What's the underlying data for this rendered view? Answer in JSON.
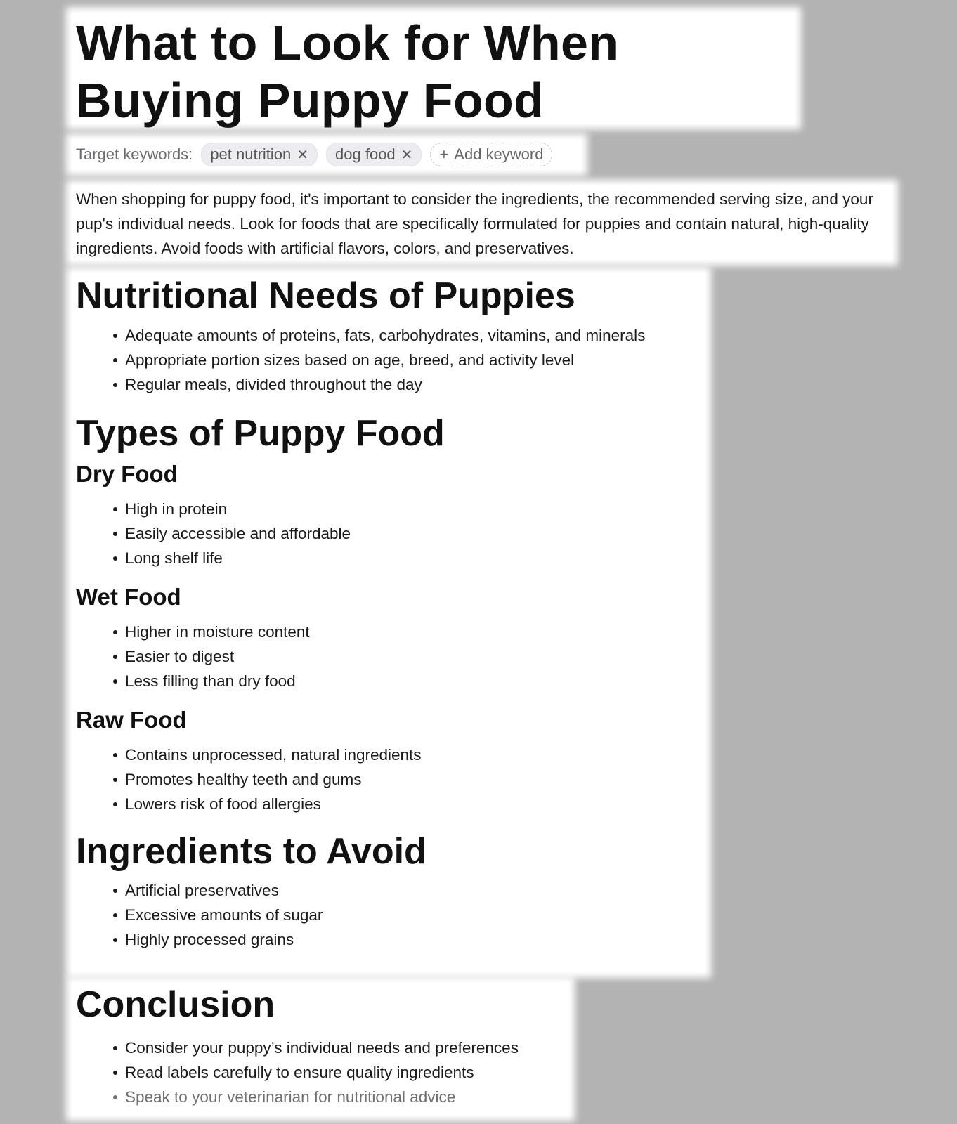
{
  "title": "What to Look for When Buying Puppy Food",
  "keywords": {
    "label": "Target keywords:",
    "chips": [
      "pet nutrition",
      "dog food"
    ],
    "add_label": "Add keyword"
  },
  "intro": "When shopping for puppy food, it's important to consider the ingredients, the recommended serving size, and your pup's individual needs. Look for foods that are specifically formulated for puppies and contain natural, high-quality ingredients. Avoid foods with artificial flavors, colors, and preservatives.",
  "nutrition": {
    "heading": "Nutritional Needs of Puppies",
    "items": [
      "Adequate amounts of proteins, fats, carbohydrates, vitamins, and minerals",
      "Appropriate portion sizes based on age, breed, and activity level",
      "Regular meals, divided throughout the day"
    ]
  },
  "types": {
    "heading": "Types of Puppy Food",
    "dry": {
      "heading": "Dry Food",
      "items": [
        "High in protein",
        "Easily accessible and affordable",
        "Long shelf life"
      ]
    },
    "wet": {
      "heading": "Wet Food",
      "items": [
        "Higher in moisture content",
        "Easier to digest",
        "Less filling than dry food"
      ]
    },
    "raw": {
      "heading": "Raw Food",
      "items": [
        "Contains unprocessed, natural ingredients",
        "Promotes healthy teeth and gums",
        "Lowers risk of food allergies"
      ]
    }
  },
  "avoid": {
    "heading": "Ingredients to Avoid",
    "items": [
      "Artificial preservatives",
      "Excessive amounts of sugar",
      "Highly processed grains"
    ]
  },
  "conclusion": {
    "heading": "Conclusion",
    "items": [
      "Consider your puppy’s individual needs and preferences",
      "Read labels carefully to ensure quality ingredients",
      "Speak to your veterinarian for nutritional advice"
    ]
  }
}
